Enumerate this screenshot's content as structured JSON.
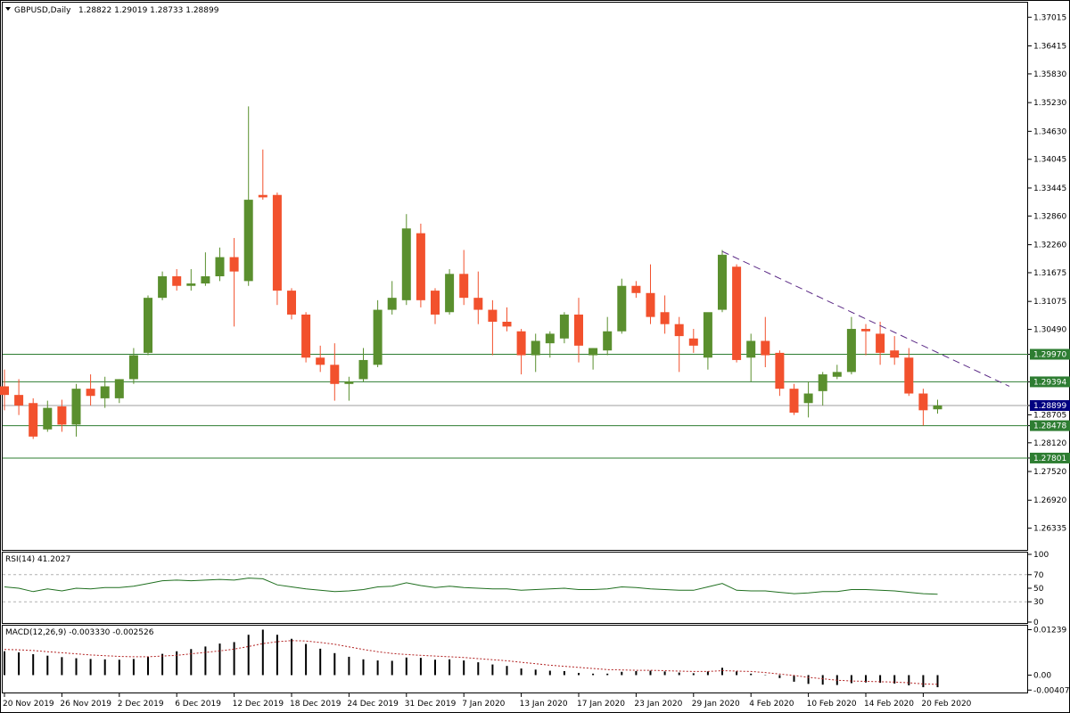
{
  "header": {
    "symbol": "GBPUSD,Daily",
    "ohlc": "1.28822 1.29019 1.28733 1.28899",
    "menu_icon": "triangle-down-icon"
  },
  "colors": {
    "bull": "#5a8f2e",
    "bear": "#f2512d",
    "hline": "#2e7d32",
    "trend": "#5b2a86",
    "rsi": "#1f6f1f",
    "macd_bar": "#000000",
    "signal": "#b22222",
    "price_tag_bg": "#000080"
  },
  "chart_data": [
    {
      "type": "candlestick",
      "title": "GBPUSD,Daily",
      "ylim": [
        1.259,
        1.373
      ],
      "y_ticks": [
        "1.37015",
        "1.36415",
        "1.35830",
        "1.35230",
        "1.34630",
        "1.34045",
        "1.33445",
        "1.32860",
        "1.32260",
        "1.31675",
        "1.31075",
        "1.30490",
        "1.29970",
        "1.29394",
        "1.28899",
        "1.28705",
        "1.28478",
        "1.28120",
        "1.27801",
        "1.27520",
        "1.26920",
        "1.26335"
      ],
      "x_labels": [
        "20 Nov 2019",
        "26 Nov 2019",
        "2 Dec 2019",
        "6 Dec 2019",
        "12 Dec 2019",
        "18 Dec 2019",
        "24 Dec 2019",
        "31 Dec 2019",
        "7 Jan 2020",
        "13 Jan 2020",
        "17 Jan 2020",
        "23 Jan 2020",
        "29 Jan 2020",
        "4 Feb 2020",
        "10 Feb 2020",
        "14 Feb 2020",
        "20 Feb 2020"
      ],
      "x_label_index": [
        0,
        4,
        8,
        12,
        16,
        20,
        24,
        28,
        32,
        36,
        40,
        44,
        48,
        52,
        56,
        60,
        64
      ],
      "ohlc": [
        [
          1.293,
          1.2965,
          1.288,
          1.2912
        ],
        [
          1.2912,
          1.2945,
          1.287,
          1.289
        ],
        [
          1.2895,
          1.2905,
          1.282,
          1.2825
        ],
        [
          1.284,
          1.29,
          1.2835,
          1.2885
        ],
        [
          1.2888,
          1.2902,
          1.2835,
          1.285
        ],
        [
          1.285,
          1.2935,
          1.2825,
          1.2925
        ],
        [
          1.2925,
          1.2955,
          1.289,
          1.291
        ],
        [
          1.2905,
          1.295,
          1.2885,
          1.293
        ],
        [
          1.2905,
          1.2945,
          1.2895,
          1.2945
        ],
        [
          1.2945,
          1.301,
          1.2935,
          1.2995
        ],
        [
          1.3,
          1.312,
          1.2995,
          1.3115
        ],
        [
          1.3115,
          1.317,
          1.311,
          1.316
        ],
        [
          1.316,
          1.3175,
          1.313,
          1.314
        ],
        [
          1.314,
          1.3175,
          1.313,
          1.3145
        ],
        [
          1.3145,
          1.321,
          1.314,
          1.316
        ],
        [
          1.316,
          1.322,
          1.315,
          1.32
        ],
        [
          1.32,
          1.324,
          1.3055,
          1.317
        ],
        [
          1.315,
          1.3515,
          1.314,
          1.332
        ],
        [
          1.333,
          1.3425,
          1.332,
          1.3325
        ],
        [
          1.333,
          1.3335,
          1.31,
          1.313
        ],
        [
          1.313,
          1.3135,
          1.307,
          1.308
        ],
        [
          1.308,
          1.3085,
          1.298,
          1.299
        ],
        [
          1.299,
          1.3015,
          1.296,
          1.2975
        ],
        [
          1.2975,
          1.302,
          1.29,
          1.2935
        ],
        [
          1.2935,
          1.295,
          1.29,
          1.294
        ],
        [
          1.2945,
          1.301,
          1.294,
          1.2985
        ],
        [
          1.2975,
          1.311,
          1.297,
          1.309
        ],
        [
          1.309,
          1.315,
          1.308,
          1.3115
        ],
        [
          1.311,
          1.329,
          1.31,
          1.326
        ],
        [
          1.325,
          1.327,
          1.3095,
          1.311
        ],
        [
          1.313,
          1.3135,
          1.306,
          1.308
        ],
        [
          1.3085,
          1.3175,
          1.308,
          1.3165
        ],
        [
          1.3165,
          1.3215,
          1.31,
          1.3115
        ],
        [
          1.3115,
          1.317,
          1.306,
          1.309
        ],
        [
          1.309,
          1.311,
          1.2995,
          1.3065
        ],
        [
          1.3065,
          1.3095,
          1.3045,
          1.3055
        ],
        [
          1.3045,
          1.305,
          1.2955,
          1.2995
        ],
        [
          1.2995,
          1.304,
          1.296,
          1.3025
        ],
        [
          1.302,
          1.3045,
          1.299,
          1.304
        ],
        [
          1.303,
          1.3085,
          1.302,
          1.308
        ],
        [
          1.308,
          1.3115,
          1.298,
          1.3015
        ],
        [
          1.2995,
          1.301,
          1.2965,
          1.301
        ],
        [
          1.3005,
          1.3075,
          1.2995,
          1.3045
        ],
        [
          1.3045,
          1.3155,
          1.304,
          1.314
        ],
        [
          1.314,
          1.315,
          1.3115,
          1.3125
        ],
        [
          1.3125,
          1.3185,
          1.306,
          1.3075
        ],
        [
          1.3085,
          1.312,
          1.304,
          1.306
        ],
        [
          1.306,
          1.3075,
          1.296,
          1.3035
        ],
        [
          1.303,
          1.305,
          1.3,
          1.3015
        ],
        [
          1.299,
          1.308,
          1.2965,
          1.3085
        ],
        [
          1.309,
          1.3215,
          1.3085,
          1.3205
        ],
        [
          1.318,
          1.3185,
          1.298,
          1.2985
        ],
        [
          1.299,
          1.304,
          1.294,
          1.3025
        ],
        [
          1.3025,
          1.3075,
          1.297,
          1.2995
        ],
        [
          1.3,
          1.3005,
          1.291,
          1.2925
        ],
        [
          1.2925,
          1.2935,
          1.287,
          1.2875
        ],
        [
          1.2895,
          1.294,
          1.2865,
          1.2915
        ],
        [
          1.292,
          1.296,
          1.289,
          1.2955
        ],
        [
          1.295,
          1.2975,
          1.2945,
          1.296
        ],
        [
          1.296,
          1.3075,
          1.2955,
          1.305
        ],
        [
          1.305,
          1.306,
          1.2995,
          1.3045
        ],
        [
          1.304,
          1.3065,
          1.2975,
          1.3
        ],
        [
          1.3005,
          1.3035,
          1.2975,
          1.299
        ],
        [
          1.299,
          1.301,
          1.291,
          1.2915
        ],
        [
          1.2915,
          1.2925,
          1.2848,
          1.288
        ],
        [
          1.2882,
          1.2902,
          1.2873,
          1.289
        ]
      ],
      "horizontal_levels": [
        {
          "price": 1.2997,
          "label": "1.29970",
          "tag": "green"
        },
        {
          "price": 1.29394,
          "label": "1.29394",
          "tag": "green"
        },
        {
          "price": 1.28899,
          "label": "1.28899",
          "tag": "current"
        },
        {
          "price": 1.28478,
          "label": "1.28478",
          "tag": "green"
        },
        {
          "price": 1.27801,
          "label": "1.27801",
          "tag": "green"
        }
      ],
      "trendline": {
        "from": [
          50,
          1.3212
        ],
        "to": [
          70,
          1.293
        ],
        "style": "dashed"
      }
    },
    {
      "type": "line",
      "title": "RSI(14) 41.2027",
      "ylim": [
        0,
        100
      ],
      "y_ticks": [
        "100",
        "70",
        "50",
        "30",
        "0"
      ],
      "levels": [
        70,
        30
      ],
      "values": [
        52,
        50,
        45,
        49,
        46,
        50,
        49,
        51,
        51,
        53,
        57,
        61,
        62,
        61,
        62,
        63,
        62,
        65,
        64,
        55,
        52,
        49,
        47,
        45,
        46,
        48,
        52,
        53,
        58,
        54,
        51,
        53,
        51,
        50,
        49,
        49,
        47,
        48,
        49,
        50,
        48,
        48,
        49,
        52,
        51,
        49,
        48,
        47,
        47,
        52,
        57,
        47,
        46,
        46,
        44,
        42,
        43,
        45,
        45,
        48,
        48,
        47,
        46,
        44,
        42,
        41
      ]
    },
    {
      "type": "bar",
      "title": "MACD(12,26,9) -0.003330 -0.002526",
      "ylim": [
        -0.0045,
        0.013
      ],
      "y_ticks": [
        "0.01239",
        "0.00",
        "-0.004079"
      ],
      "macd": [
        0.0065,
        0.0062,
        0.0057,
        0.0053,
        0.0049,
        0.0046,
        0.0044,
        0.0043,
        0.0042,
        0.0044,
        0.005,
        0.0058,
        0.0065,
        0.0071,
        0.0078,
        0.0086,
        0.009,
        0.011,
        0.0124,
        0.011,
        0.0099,
        0.0085,
        0.0072,
        0.006,
        0.005,
        0.0043,
        0.004,
        0.0039,
        0.0048,
        0.0047,
        0.0042,
        0.0043,
        0.004,
        0.0035,
        0.0029,
        0.0025,
        0.0018,
        0.0015,
        0.0012,
        0.0011,
        0.0006,
        0.0004,
        0.0004,
        0.0009,
        0.0011,
        0.0012,
        0.001,
        0.0007,
        0.0005,
        0.001,
        0.002,
        0.001,
        0.0004,
        0.0001,
        -0.0008,
        -0.0018,
        -0.0024,
        -0.0026,
        -0.0027,
        -0.0022,
        -0.002,
        -0.0021,
        -0.0023,
        -0.0028,
        -0.0033,
        -0.0033
      ],
      "signal": [
        0.007,
        0.0069,
        0.0067,
        0.0064,
        0.0061,
        0.0058,
        0.0055,
        0.0053,
        0.0051,
        0.005,
        0.005,
        0.0052,
        0.0054,
        0.0058,
        0.0062,
        0.0066,
        0.0071,
        0.0078,
        0.0086,
        0.0091,
        0.0094,
        0.0093,
        0.0089,
        0.0084,
        0.0077,
        0.007,
        0.0064,
        0.0059,
        0.0056,
        0.0054,
        0.0052,
        0.005,
        0.0048,
        0.0045,
        0.0042,
        0.0039,
        0.0035,
        0.0031,
        0.0027,
        0.0024,
        0.0021,
        0.0018,
        0.0015,
        0.0014,
        0.0013,
        0.0013,
        0.0012,
        0.0011,
        0.001,
        0.001,
        0.0012,
        0.0011,
        0.001,
        0.0007,
        0.0003,
        -0.0001,
        -0.0006,
        -0.001,
        -0.0014,
        -0.0016,
        -0.0017,
        -0.0018,
        -0.0019,
        -0.0021,
        -0.0024,
        -0.0025
      ]
    }
  ]
}
